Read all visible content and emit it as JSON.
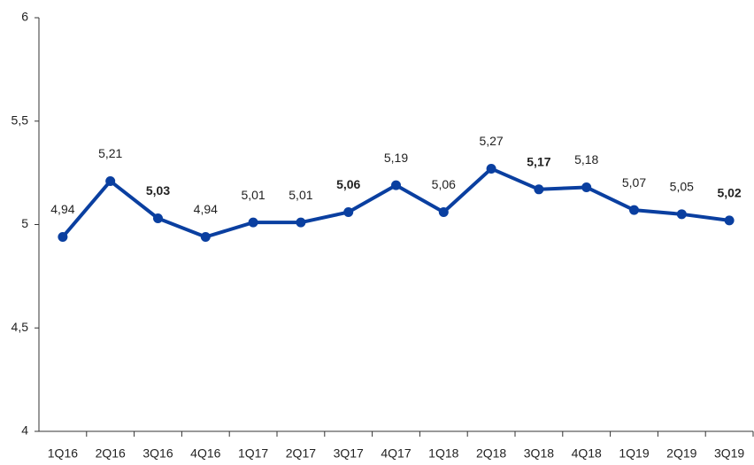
{
  "chart_data": {
    "type": "line",
    "categories": [
      "1Q16",
      "2Q16",
      "3Q16",
      "4Q16",
      "1Q17",
      "2Q17",
      "3Q17",
      "4Q17",
      "1Q18",
      "2Q18",
      "3Q18",
      "4Q18",
      "1Q19",
      "2Q19",
      "3Q19"
    ],
    "series": [
      {
        "color": "#0a3fa0",
        "values": [
          4.94,
          5.21,
          5.03,
          4.94,
          5.01,
          5.01,
          5.06,
          5.19,
          5.06,
          5.27,
          5.17,
          5.18,
          5.07,
          5.05,
          5.02
        ],
        "value_labels": [
          "4,94",
          "5,21",
          "5,03",
          "4,94",
          "5,01",
          "5,01",
          "5,06",
          "5,19",
          "5,06",
          "5,27",
          "5,17",
          "5,18",
          "5,07",
          "5,05",
          "5,02"
        ],
        "value_label_bold": [
          false,
          false,
          true,
          false,
          false,
          false,
          true,
          false,
          false,
          false,
          true,
          false,
          false,
          false,
          true
        ]
      }
    ],
    "ylim": [
      4,
      6
    ],
    "yticks": [
      4,
      {
        "value": 4.5,
        "label": "4,5"
      },
      5,
      {
        "value": 5.5,
        "label": "5,5"
      },
      6
    ],
    "grid": false
  }
}
